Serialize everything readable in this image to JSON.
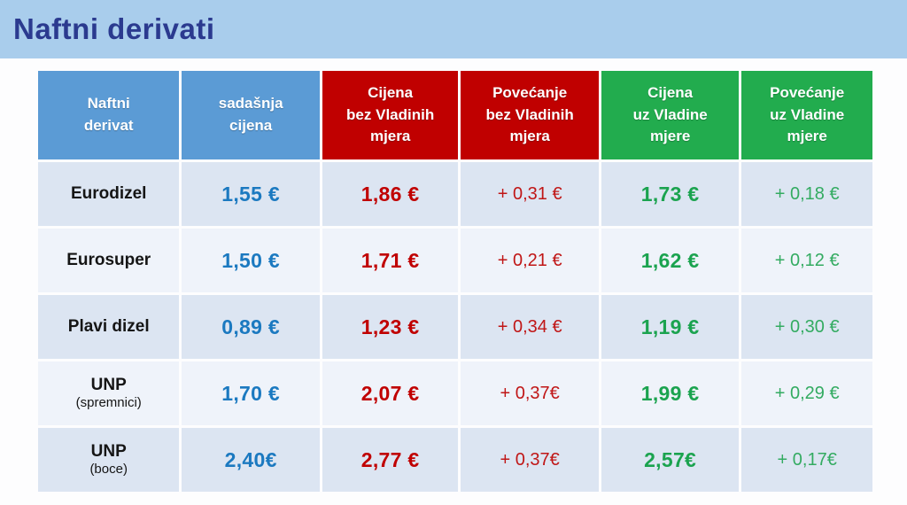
{
  "page": {
    "title": "Naftni derivati"
  },
  "colors": {
    "title_band_bg": "#a9cdec",
    "title_text": "#2b3a8f",
    "header_blue": "#5b9bd5",
    "header_red": "#c00000",
    "header_green": "#22ac4e",
    "value_blue": "#1b79c0",
    "value_red": "#c00000",
    "increase_red": "#c01616",
    "value_green": "#1ba34f",
    "increase_green": "#33ab61",
    "row_odd_bg": "#dce5f2",
    "row_even_bg": "#eff3fa"
  },
  "table": {
    "headers": [
      "Naftni\nderivat",
      "sadašnja\ncijena",
      "Cijena\nbez Vladinih\nmjera",
      "Povećanje\nbez Vladinih\nmjera",
      "Cijena\nuz Vladine\nmjere",
      "Povećanje\nuz Vladine\nmjere"
    ],
    "rows": [
      {
        "name": "Eurodizel",
        "sub": "",
        "current": "1,55 €",
        "no_measures_price": "1,86 €",
        "no_measures_increase": "+ 0,31 €",
        "measures_price": "1,73 €",
        "measures_increase": "+ 0,18 €"
      },
      {
        "name": "Eurosuper",
        "sub": "",
        "current": "1,50 €",
        "no_measures_price": "1,71 €",
        "no_measures_increase": "+ 0,21 €",
        "measures_price": "1,62 €",
        "measures_increase": "+ 0,12 €"
      },
      {
        "name": "Plavi dizel",
        "sub": "",
        "current": "0,89 €",
        "no_measures_price": "1,23 €",
        "no_measures_increase": "+ 0,34 €",
        "measures_price": "1,19 €",
        "measures_increase": "+ 0,30 €"
      },
      {
        "name": "UNP",
        "sub": "(spremnici)",
        "current": "1,70 €",
        "no_measures_price": "2,07 €",
        "no_measures_increase": "+ 0,37€",
        "measures_price": "1,99 €",
        "measures_increase": "+ 0,29 €"
      },
      {
        "name": "UNP",
        "sub": "(boce)",
        "current": "2,40€",
        "no_measures_price": "2,77 €",
        "no_measures_increase": "+ 0,37€",
        "measures_price": "2,57€",
        "measures_increase": "+ 0,17€"
      }
    ]
  },
  "chart_data": {
    "type": "table",
    "title": "Naftni derivati",
    "columns": [
      "Naftni derivat",
      "sadašnja cijena",
      "Cijena bez Vladinih mjera",
      "Povećanje bez Vladinih mjera",
      "Cijena uz Vladine mjere",
      "Povećanje uz Vladine mjere"
    ],
    "rows": [
      [
        "Eurodizel",
        "1,55 €",
        "1,86 €",
        "+ 0,31 €",
        "1,73 €",
        "+ 0,18 €"
      ],
      [
        "Eurosuper",
        "1,50 €",
        "1,71 €",
        "+ 0,21 €",
        "1,62 €",
        "+ 0,12 €"
      ],
      [
        "Plavi dizel",
        "0,89 €",
        "1,23 €",
        "+ 0,34 €",
        "1,19 €",
        "+ 0,30 €"
      ],
      [
        "UNP (spremnici)",
        "1,70 €",
        "2,07 €",
        "+ 0,37€",
        "1,99 €",
        "+ 0,29 €"
      ],
      [
        "UNP (boce)",
        "2,40€",
        "2,77 €",
        "+ 0,37€",
        "2,57€",
        "+ 0,17€"
      ]
    ],
    "numeric": {
      "products": [
        "Eurodizel",
        "Eurosuper",
        "Plavi dizel",
        "UNP (spremnici)",
        "UNP (boce)"
      ],
      "current_price_eur": [
        1.55,
        1.5,
        0.89,
        1.7,
        2.4
      ],
      "price_without_measures_eur": [
        1.86,
        1.71,
        1.23,
        2.07,
        2.77
      ],
      "increase_without_measures_eur": [
        0.31,
        0.21,
        0.34,
        0.37,
        0.37
      ],
      "price_with_measures_eur": [
        1.73,
        1.62,
        1.19,
        1.99,
        2.57
      ],
      "increase_with_measures_eur": [
        0.18,
        0.12,
        0.3,
        0.29,
        0.17
      ]
    }
  }
}
